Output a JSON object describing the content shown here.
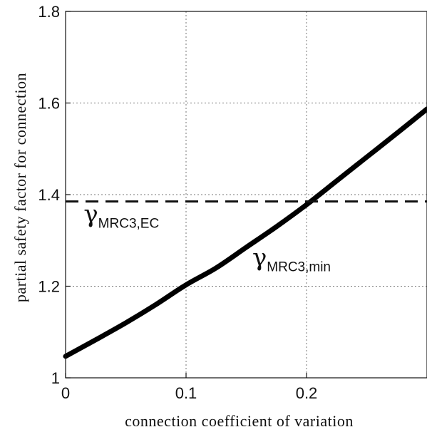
{
  "chart_data": {
    "type": "line",
    "xlabel": "connection coefficient of variation",
    "ylabel": "partial safety factor for connection",
    "xlim": [
      0,
      0.3
    ],
    "ylim": [
      1.0,
      1.8
    ],
    "x_ticks": [
      "0",
      "0.1",
      "0.2"
    ],
    "y_ticks": [
      "1",
      "1.2",
      "1.4",
      "1.6",
      "1.8"
    ],
    "x_tick_values": [
      0,
      0.1,
      0.2
    ],
    "y_tick_values": [
      1.0,
      1.2,
      1.4,
      1.6,
      1.8
    ],
    "grid": true,
    "series": [
      {
        "x": [
          0,
          0.025,
          0.05,
          0.075,
          0.1,
          0.125,
          0.15,
          0.175,
          0.2,
          0.225,
          0.25,
          0.275,
          0.3
        ],
        "y": [
          1.047,
          1.083,
          1.12,
          1.16,
          1.203,
          1.24,
          1.285,
          1.33,
          1.378,
          1.43,
          1.482,
          1.534,
          1.587
        ],
        "style": "solid"
      },
      {
        "x": [
          0,
          0.3
        ],
        "y": [
          1.385,
          1.385
        ],
        "style": "dashed"
      }
    ],
    "annotations": [
      {
        "symbol": "γ",
        "subscript": "MRC3,EC",
        "x": 0.015,
        "y": 1.34
      },
      {
        "symbol": "γ",
        "subscript": "MRC3,min",
        "x": 0.155,
        "y": 1.245
      }
    ]
  }
}
